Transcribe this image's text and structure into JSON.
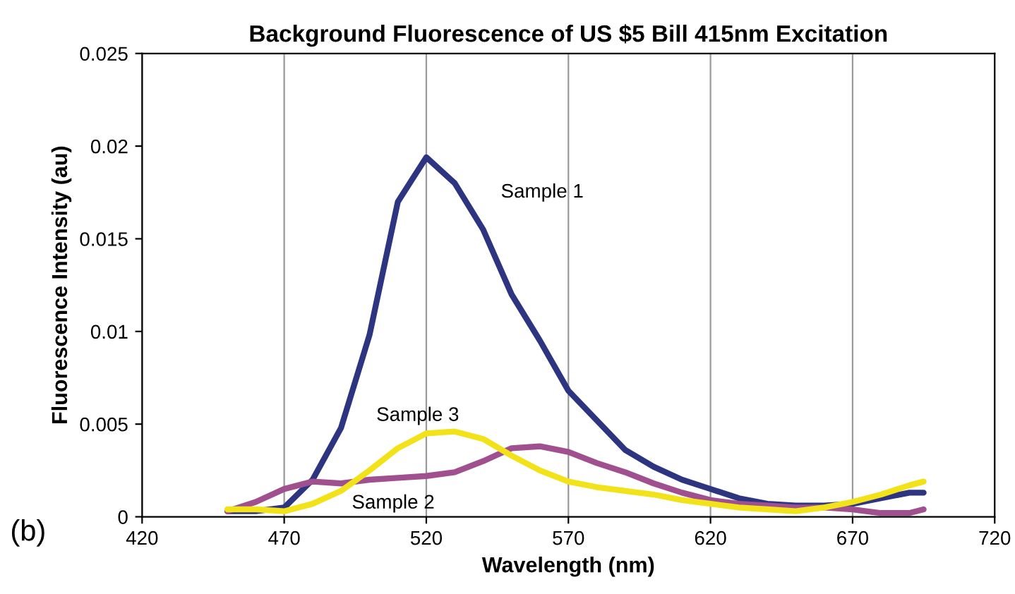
{
  "chart_data": {
    "type": "line",
    "title": "Background Fluorescence of US $5 Bill 415nm Excitation",
    "xlabel": "Wavelength (nm)",
    "ylabel": "Fluorescence Intensity (au)",
    "x": [
      450,
      460,
      470,
      480,
      490,
      500,
      510,
      520,
      530,
      540,
      550,
      560,
      570,
      580,
      590,
      600,
      610,
      620,
      630,
      640,
      650,
      660,
      670,
      680,
      690,
      695
    ],
    "series": [
      {
        "name": "Sample 1",
        "color": "#2e3580",
        "values": [
          0.0003,
          0.0003,
          0.0005,
          0.002,
          0.0048,
          0.0098,
          0.017,
          0.0194,
          0.018,
          0.0155,
          0.012,
          0.0095,
          0.0068,
          0.0052,
          0.0036,
          0.0027,
          0.002,
          0.0015,
          0.001,
          0.0007,
          0.0006,
          0.0006,
          0.0007,
          0.001,
          0.0013,
          0.0013
        ]
      },
      {
        "name": "Sample 2",
        "color": "#a0508e",
        "values": [
          0.0003,
          0.0008,
          0.0015,
          0.0019,
          0.0018,
          0.002,
          0.0021,
          0.0022,
          0.0024,
          0.003,
          0.0037,
          0.0038,
          0.0035,
          0.0029,
          0.0024,
          0.0018,
          0.0013,
          0.0009,
          0.0007,
          0.0006,
          0.0005,
          0.0005,
          0.0004,
          0.0002,
          0.0002,
          0.0004
        ]
      },
      {
        "name": "Sample 3",
        "color": "#f2e21a",
        "values": [
          0.0004,
          0.0004,
          0.0003,
          0.0007,
          0.0014,
          0.0025,
          0.0037,
          0.0045,
          0.0046,
          0.0042,
          0.0033,
          0.0025,
          0.0019,
          0.0016,
          0.0014,
          0.0012,
          0.0009,
          0.0007,
          0.0005,
          0.0004,
          0.0003,
          0.0005,
          0.0008,
          0.0012,
          0.0017,
          0.0019
        ]
      }
    ],
    "annotations": [
      "(b)"
    ],
    "xlim": [
      420,
      720
    ],
    "xticks": [
      420,
      470,
      520,
      570,
      620,
      670,
      720
    ],
    "ylim": [
      0,
      0.025
    ],
    "yticks": [
      0,
      0.005,
      0.01,
      0.015,
      0.02,
      0.025
    ],
    "grid": "x",
    "line_style": "solid",
    "legend": false
  }
}
